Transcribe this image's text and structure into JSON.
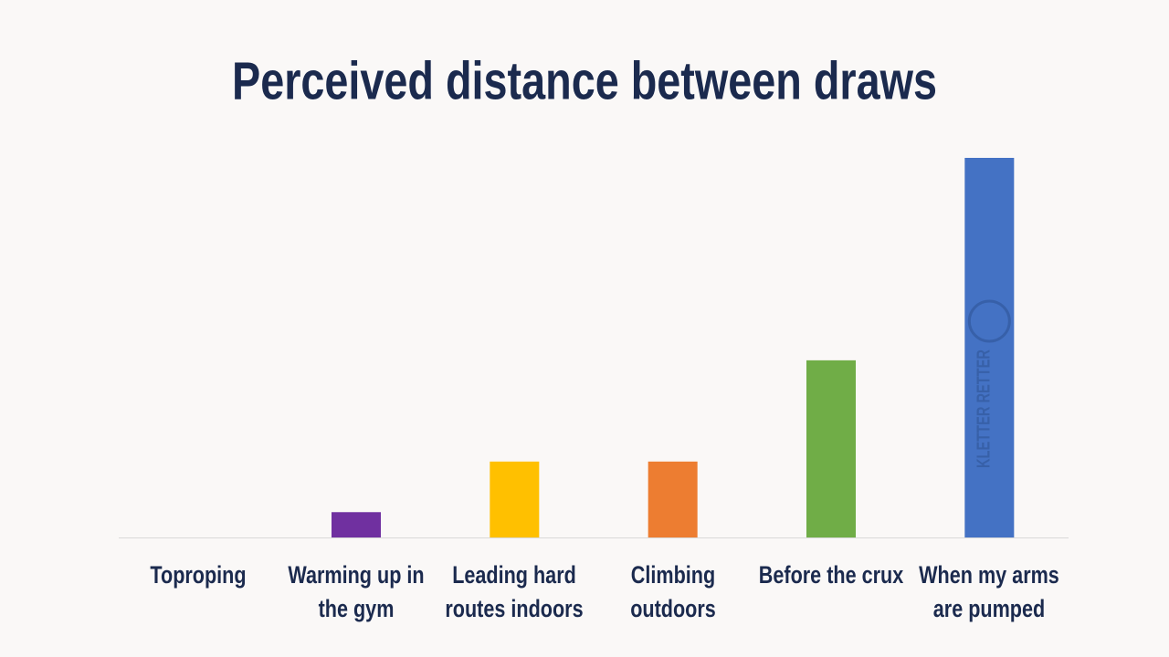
{
  "chart_data": {
    "type": "bar",
    "title": "Perceived distance between draws",
    "categories": [
      "Toproping",
      "Warming up in the gym",
      "Leading hard routes indoors",
      "Climbing outdoors",
      "Before the crux",
      "When my arms are pumped"
    ],
    "values": [
      0,
      0.5,
      1.5,
      1.5,
      3.5,
      7.5
    ],
    "colors": [
      "#7030a0",
      "#7030a0",
      "#ffc000",
      "#ed7d31",
      "#70ad47",
      "#4472c4"
    ],
    "ylim": [
      0,
      7.5
    ],
    "grid": false,
    "watermark": "KLETTER RETTER"
  }
}
